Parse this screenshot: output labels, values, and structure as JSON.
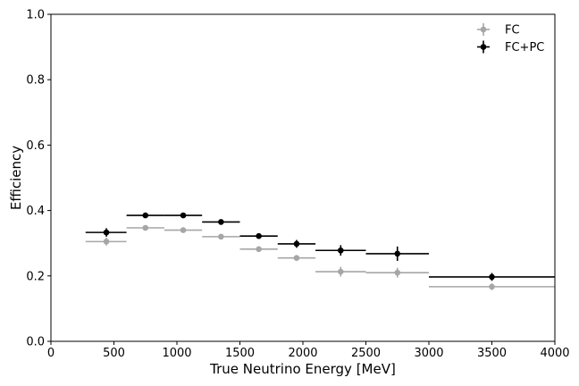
{
  "chart_data": {
    "type": "scatter",
    "title": "",
    "xlabel": "True Neutrino Energy [MeV]",
    "ylabel": "Efficiency",
    "xlim": [
      0,
      4000
    ],
    "ylim": [
      0.0,
      1.0
    ],
    "xticks": [
      0,
      500,
      1000,
      1500,
      2000,
      2500,
      3000,
      3500,
      4000
    ],
    "xtick_labels": [
      "0",
      "500",
      "1000",
      "1500",
      "2000",
      "2500",
      "3000",
      "3500",
      "4000"
    ],
    "yticks": [
      0.0,
      0.2,
      0.4,
      0.6,
      0.8,
      1.0
    ],
    "ytick_labels": [
      "0.0",
      "0.2",
      "0.4",
      "0.6",
      "0.8",
      "1.0"
    ],
    "grid": false,
    "legend_position": "top-right",
    "series": [
      {
        "name": "FC",
        "color": "#a6a6a6",
        "points": [
          {
            "x": 440,
            "y": 0.305,
            "xlo": 275,
            "xhi": 600,
            "yerr": 0.012
          },
          {
            "x": 750,
            "y": 0.347,
            "xlo": 600,
            "xhi": 900,
            "yerr": 0.006
          },
          {
            "x": 1050,
            "y": 0.34,
            "xlo": 900,
            "xhi": 1200,
            "yerr": 0.006
          },
          {
            "x": 1350,
            "y": 0.32,
            "xlo": 1200,
            "xhi": 1500,
            "yerr": 0.006
          },
          {
            "x": 1650,
            "y": 0.282,
            "xlo": 1500,
            "xhi": 1800,
            "yerr": 0.006
          },
          {
            "x": 1950,
            "y": 0.255,
            "xlo": 1800,
            "xhi": 2100,
            "yerr": 0.007
          },
          {
            "x": 2300,
            "y": 0.213,
            "xlo": 2100,
            "xhi": 2500,
            "yerr": 0.015
          },
          {
            "x": 2750,
            "y": 0.21,
            "xlo": 2500,
            "xhi": 3000,
            "yerr": 0.015
          },
          {
            "x": 3500,
            "y": 0.167,
            "xlo": 3000,
            "xhi": 4000,
            "yerr": 0.01
          }
        ]
      },
      {
        "name": "FC+PC",
        "color": "#000000",
        "points": [
          {
            "x": 440,
            "y": 0.333,
            "xlo": 275,
            "xhi": 600,
            "yerr": 0.013
          },
          {
            "x": 750,
            "y": 0.385,
            "xlo": 600,
            "xhi": 900,
            "yerr": 0.006
          },
          {
            "x": 1050,
            "y": 0.385,
            "xlo": 900,
            "xhi": 1200,
            "yerr": 0.006
          },
          {
            "x": 1350,
            "y": 0.365,
            "xlo": 1200,
            "xhi": 1500,
            "yerr": 0.006
          },
          {
            "x": 1650,
            "y": 0.322,
            "xlo": 1500,
            "xhi": 1800,
            "yerr": 0.006
          },
          {
            "x": 1950,
            "y": 0.298,
            "xlo": 1800,
            "xhi": 2100,
            "yerr": 0.012
          },
          {
            "x": 2300,
            "y": 0.278,
            "xlo": 2100,
            "xhi": 2500,
            "yerr": 0.016
          },
          {
            "x": 2750,
            "y": 0.268,
            "xlo": 2500,
            "xhi": 3000,
            "yerr": 0.022
          },
          {
            "x": 3500,
            "y": 0.197,
            "xlo": 3000,
            "xhi": 4000,
            "yerr": 0.012
          }
        ]
      }
    ]
  }
}
